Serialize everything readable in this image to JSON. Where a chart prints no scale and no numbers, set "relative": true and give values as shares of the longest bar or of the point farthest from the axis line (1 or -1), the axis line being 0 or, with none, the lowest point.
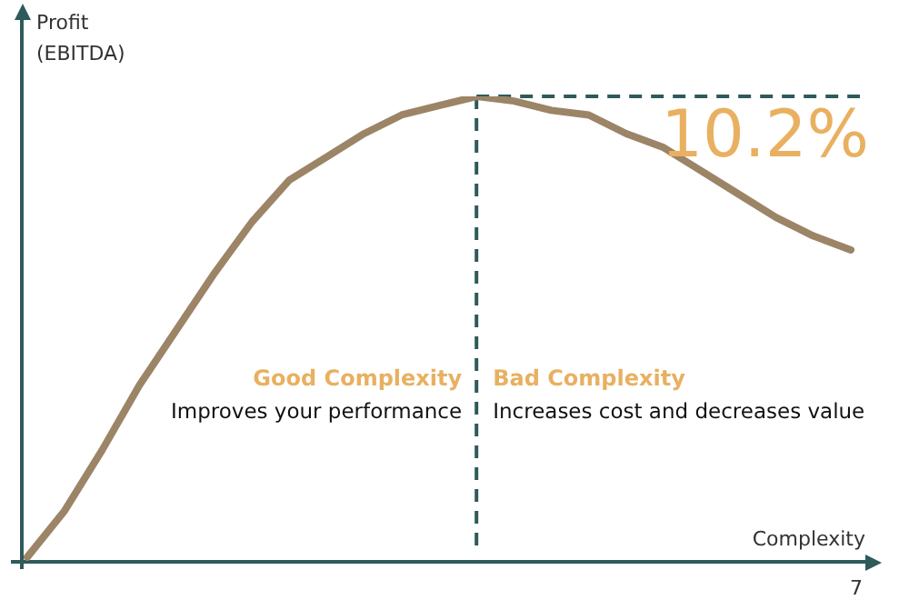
{
  "chart_data": {
    "type": "line",
    "relative": true,
    "xlabel": "Complexity",
    "ylabel": "Profit\n(EBITDA)",
    "categories": [
      null,
      null,
      null,
      null,
      null,
      null,
      null,
      null,
      null,
      null,
      null,
      null,
      null,
      null,
      null,
      null,
      null,
      null,
      null,
      null,
      null,
      null,
      null
    ],
    "marker": "none",
    "series": [
      {
        "color": "#9c8466",
        "values": [
          0.01,
          0.11,
          0.24,
          0.38,
          0.5,
          0.62,
          0.73,
          0.82,
          0.87,
          0.92,
          0.96,
          0.98,
          1,
          0.99,
          0.97,
          0.96,
          0.92,
          0.89,
          0.84,
          0.79,
          0.74,
          0.7,
          0.67
        ]
      }
    ],
    "annotations": [
      "10.2%",
      "Good Complexity",
      "Improves your performance",
      "Bad Complexity",
      "Increases cost and decreases value",
      "7"
    ]
  }
}
